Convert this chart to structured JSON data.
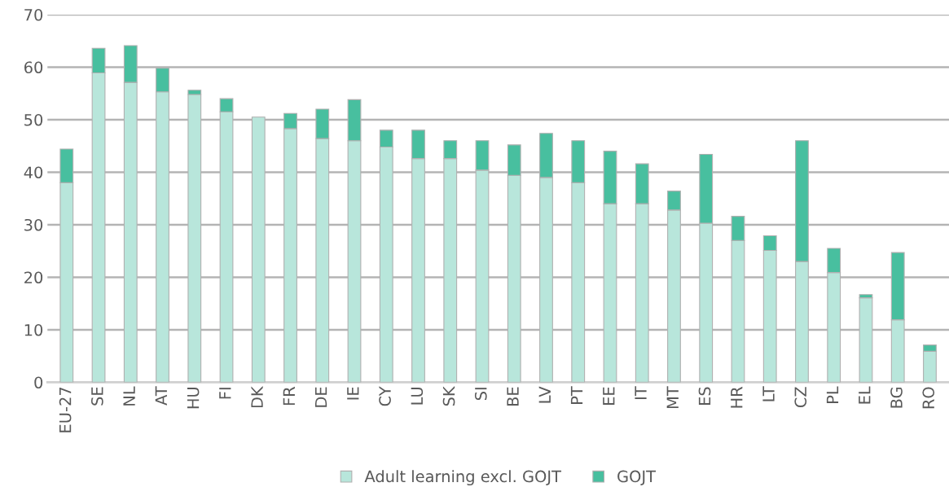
{
  "chart_data": {
    "type": "bar",
    "stacked": true,
    "categories": [
      "EU-27",
      "SE",
      "NL",
      "AT",
      "HU",
      "FI",
      "DK",
      "FR",
      "DE",
      "IE",
      "CY",
      "LU",
      "SK",
      "SI",
      "BE",
      "LV",
      "PT",
      "EE",
      "IT",
      "MT",
      "ES",
      "HR",
      "LT",
      "CZ",
      "PL",
      "EL",
      "BG",
      "RO"
    ],
    "series": [
      {
        "name": "Adult learning excl. GOJT",
        "color": "#b8e6db",
        "values": [
          38.0,
          58.9,
          57.1,
          55.3,
          54.8,
          51.5,
          50.5,
          48.3,
          46.4,
          46.0,
          44.8,
          42.6,
          42.6,
          40.4,
          39.4,
          39.0,
          38.0,
          34.0,
          34.0,
          32.8,
          30.3,
          27.0,
          25.1,
          23.0,
          20.9,
          16.1,
          11.9,
          5.9
        ]
      },
      {
        "name": "GOJT",
        "color": "#48bf9f",
        "values": [
          6.4,
          4.7,
          7.0,
          4.5,
          0.8,
          2.5,
          null,
          2.9,
          5.6,
          7.8,
          3.2,
          5.4,
          3.4,
          5.6,
          5.8,
          8.4,
          8.0,
          10.0,
          7.6,
          3.6,
          13.1,
          4.6,
          2.8,
          23.0,
          4.6,
          0.6,
          12.8,
          1.2
        ]
      }
    ],
    "ylim": [
      0,
      70
    ],
    "yticks": [
      0,
      10,
      20,
      30,
      40,
      50,
      60,
      70
    ],
    "grid": "y",
    "legend": "bottom"
  }
}
